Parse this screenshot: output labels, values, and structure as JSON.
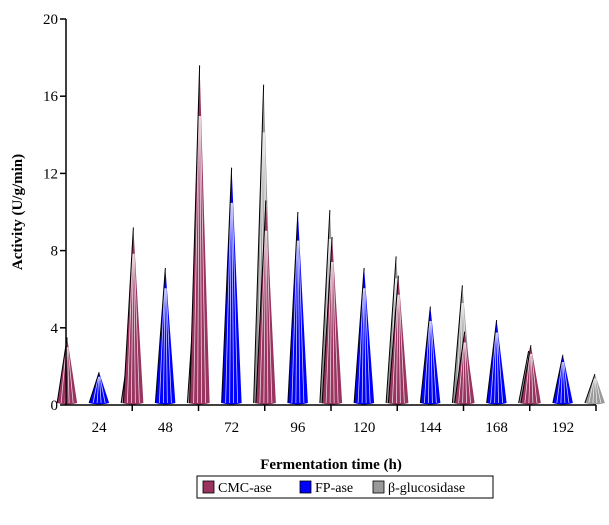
{
  "chart_data": {
    "type": "bar",
    "bar_shape": "cone",
    "categories": [
      "24",
      "48",
      "72",
      "96",
      "120",
      "144",
      "168",
      "192"
    ],
    "series": [
      {
        "name": "CMC-ase",
        "color": "#99335f",
        "values": [
          3.5,
          9.2,
          17.6,
          10.6,
          8.7,
          6.7,
          3.8,
          3.1
        ]
      },
      {
        "name": "FP-ase",
        "color": "#0000ff",
        "values": [
          1.7,
          7.1,
          12.3,
          10.0,
          7.1,
          5.1,
          4.4,
          2.6
        ]
      },
      {
        "name": "β-glucosidase",
        "color": "#999999",
        "values": [
          3.7,
          7.7,
          16.6,
          10.1,
          7.7,
          6.2,
          2.8,
          1.6
        ]
      }
    ],
    "xlabel": "Fermentation time (h)",
    "ylabel": "Activity (U/g/min)",
    "ylim": [
      0,
      20
    ],
    "yticks": [
      0,
      4,
      8,
      12,
      16,
      20
    ],
    "grid": false,
    "legend_position": "bottom"
  }
}
